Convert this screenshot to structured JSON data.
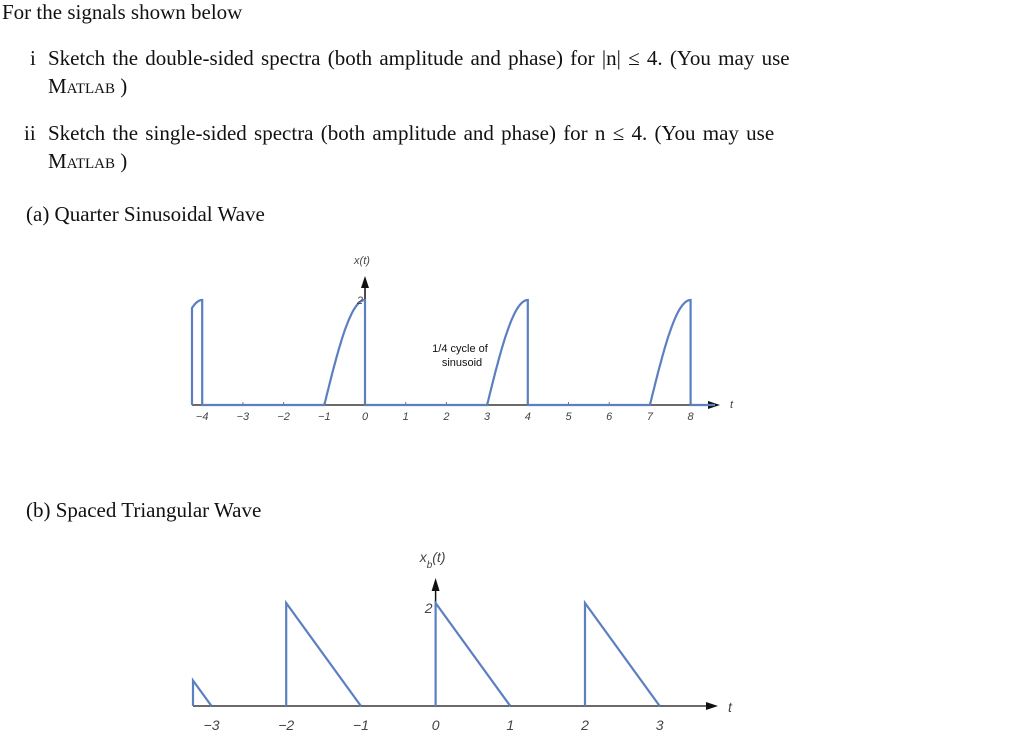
{
  "intro": "For the signals shown below",
  "items": [
    {
      "marker": "i",
      "line1": "Sketch the double-sided spectra (both amplitude and phase) for |n| ≤ 4. (You may use",
      "line2": "Matlab )"
    },
    {
      "marker": "ii",
      "line1": "Sketch the single-sided spectra (both amplitude and phase) for n ≤ 4. (You may use",
      "line2": "Matlab )"
    }
  ],
  "parts": [
    {
      "label": "(a) Quarter Sinusoidal Wave"
    },
    {
      "label": "(b) Spaced Triangular Wave"
    }
  ],
  "colors": {
    "signal": "#5b7fc0",
    "axis": "#111111"
  },
  "chart_data": [
    {
      "type": "line",
      "ylabel": "x(t)",
      "xlabel": "t",
      "xticks": [
        "-4",
        "-3",
        "-2",
        "-1",
        "0",
        "1",
        "2",
        "3",
        "4",
        "5",
        "6",
        "7",
        "8"
      ],
      "ytick": "2",
      "annotation": [
        "1/4 cycle of",
        "sinusoid"
      ],
      "period": 4,
      "amplitude": 2,
      "pulses": [
        {
          "start": -5,
          "end": -4
        },
        {
          "start": -1,
          "end": 0
        },
        {
          "start": 3,
          "end": 4
        },
        {
          "start": 7,
          "end": 8
        }
      ],
      "xlim": [
        -4.3,
        8.9
      ],
      "ylim": [
        0,
        2
      ]
    },
    {
      "type": "line",
      "ylabel": "x_b(t)",
      "xlabel": "t",
      "xticks": [
        "-3",
        "-2",
        "-1",
        "0",
        "1",
        "2",
        "3"
      ],
      "ytick": "2",
      "period": 2,
      "amplitude": 2,
      "ramps": [
        {
          "start": -4,
          "end": -3
        },
        {
          "start": -2,
          "end": -1
        },
        {
          "start": 0,
          "end": 1
        },
        {
          "start": 2,
          "end": 3
        }
      ],
      "xlim": [
        -3.25,
        3.75
      ],
      "ylim": [
        0,
        2
      ]
    }
  ]
}
